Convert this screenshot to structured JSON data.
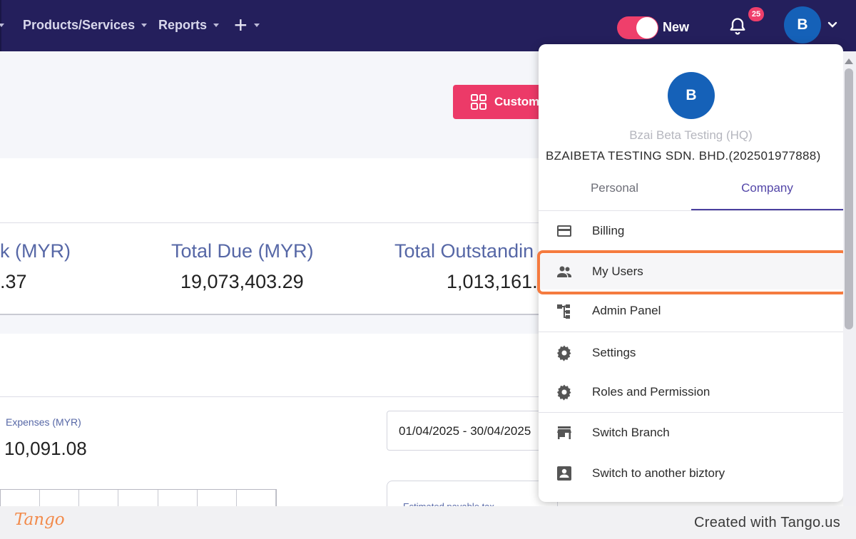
{
  "nav": {
    "items": [
      {
        "label": "Products/Services"
      },
      {
        "label": "Reports"
      }
    ],
    "toggle_label": "New",
    "notification_count": "25",
    "avatar_initial": "B"
  },
  "page": {
    "customize_label": "Custom",
    "stats": [
      {
        "label": "k (MYR)",
        "value": ".37"
      },
      {
        "label": "Total Due (MYR)",
        "value": "19,073,403.29"
      },
      {
        "label": "Total Outstandin",
        "value": "1,013,161."
      }
    ],
    "expenses_label": "Expenses (MYR)",
    "expenses_value": "10,091.08",
    "date_range": "01/04/2025 - 30/04/2025",
    "tax_card_label": "Estimated payable tax"
  },
  "dropdown": {
    "avatar_initial": "B",
    "user_name": "Bzai Beta Testing (HQ)",
    "company": "BZAIBETA TESTING SDN. BHD.(202501977888)",
    "tabs": [
      {
        "label": "Personal"
      },
      {
        "label": "Company"
      }
    ],
    "active_tab": "Company",
    "items": [
      {
        "label": "Billing",
        "icon": "credit-card-icon"
      },
      {
        "label": "My Users",
        "icon": "users-icon"
      },
      {
        "label": "Admin Panel",
        "icon": "hierarchy-icon"
      },
      {
        "label": "Settings",
        "icon": "gear-icon"
      },
      {
        "label": "Roles and Permission",
        "icon": "gear-icon"
      },
      {
        "label": "Switch Branch",
        "icon": "store-icon"
      },
      {
        "label": "Switch to another biztory",
        "icon": "account-box-icon"
      }
    ],
    "highlighted_item": "My Users",
    "colors": {
      "accent": "#4a3f9e",
      "highlight": "#f57b3f",
      "avatar": "#1561b8"
    }
  },
  "footer": {
    "logo": "Tango",
    "credit": "Created with Tango.us"
  }
}
